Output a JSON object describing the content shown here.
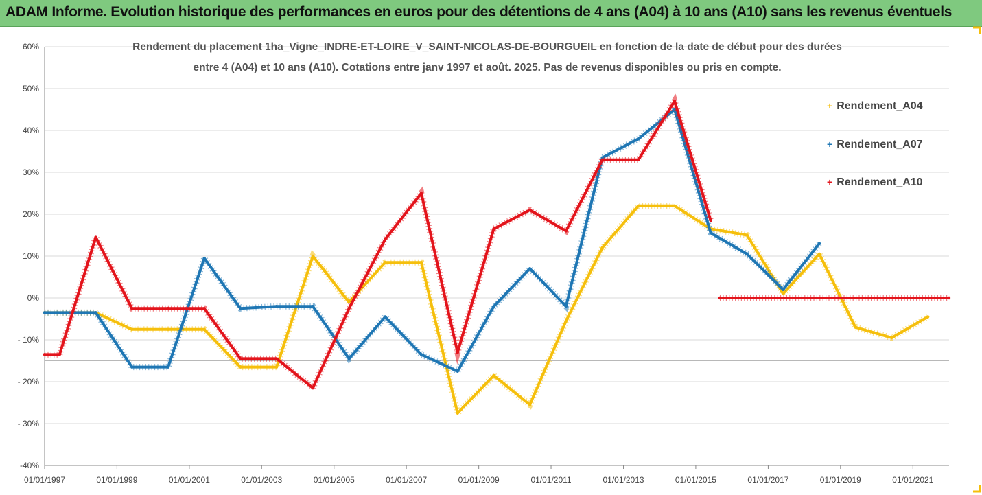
{
  "header": {
    "title": "ADAM Informe. Evolution historique des performances en euros pour des détentions de 4 ans (A04) à 10 ans (A10) sans les revenus éventuels"
  },
  "colors": {
    "header_bg": "#7fc97f",
    "A04": "#f5bf0c",
    "A07": "#1f77b4",
    "A10": "#e3141c",
    "grid": "#d9d9d9"
  },
  "chart_data": {
    "type": "line",
    "title_line1": "Rendement du placement 1ha_Vigne_INDRE-ET-LOIRE_V_SAINT-NICOLAS-DE-BOURGUEIL en fonction de la date de début pour des durées",
    "title_line2": "entre 4 (A04) et 10 ans (A10). Cotations entre janv 1997 et août. 2025. Pas de revenus disponibles ou pris en compte.",
    "xlabel": "",
    "ylabel": "",
    "xlim": [
      "1997-01-01",
      "2022-01-01"
    ],
    "ylim": [
      -40,
      60
    ],
    "y_ticks": [
      -40,
      -30,
      -20,
      -10,
      0,
      10,
      20,
      30,
      40,
      50,
      60
    ],
    "y_tick_labels": [
      "-40%",
      "- 30%",
      "- 20%",
      "- 10%",
      "0%",
      "10%",
      "20%",
      "30%",
      "40%",
      "50%",
      "60%"
    ],
    "x_ticks": [
      "1997-01-01",
      "1999-01-01",
      "2001-01-01",
      "2003-01-01",
      "2005-01-01",
      "2007-01-01",
      "2009-01-01",
      "2011-01-01",
      "2013-01-01",
      "2015-01-01",
      "2017-01-01",
      "2019-01-01",
      "2021-01-01"
    ],
    "x_tick_labels": [
      "01/01/1997",
      "01/01/1999",
      "01/01/2001",
      "01/01/2003",
      "01/01/2005",
      "01/01/2007",
      "01/01/2009",
      "01/01/2011",
      "01/01/2013",
      "01/01/2015",
      "01/01/2017",
      "01/01/2019",
      "01/01/2021"
    ],
    "grid": "horizontal",
    "legend_position": "right",
    "series": [
      {
        "name": "Rendement_A04",
        "color": "#f5bf0c",
        "points": [
          [
            "1997-01-01",
            -3.5
          ],
          [
            "1998-06-01",
            -3.5
          ],
          [
            "1999-06-01",
            -7.5
          ],
          [
            "2000-06-01",
            -7.5
          ],
          [
            "2001-06-01",
            -7.5
          ],
          [
            "2002-06-01",
            -16.5
          ],
          [
            "2003-06-01",
            -16.5
          ],
          [
            "2004-06-01",
            10.0
          ],
          [
            "2005-06-01",
            -1.0
          ],
          [
            "2006-06-01",
            8.5
          ],
          [
            "2007-06-01",
            8.5
          ],
          [
            "2008-06-01",
            -27.5
          ],
          [
            "2009-06-01",
            -18.5
          ],
          [
            "2010-06-01",
            -25.5
          ],
          [
            "2011-06-01",
            -5.5
          ],
          [
            "2012-06-01",
            12.0
          ],
          [
            "2013-06-01",
            22.0
          ],
          [
            "2014-06-01",
            22.0
          ],
          [
            "2015-06-01",
            16.5
          ],
          [
            "2016-06-01",
            15.0
          ],
          [
            "2017-06-01",
            1.0
          ],
          [
            "2018-06-01",
            10.5
          ],
          [
            "2019-06-01",
            -7.0
          ],
          [
            "2020-06-01",
            -9.5
          ],
          [
            "2021-06-01",
            -4.5
          ]
        ]
      },
      {
        "name": "Rendement_A07",
        "color": "#1f77b4",
        "points": [
          [
            "1997-01-01",
            -3.5
          ],
          [
            "1998-06-01",
            -3.5
          ],
          [
            "1999-06-01",
            -16.5
          ],
          [
            "2000-06-01",
            -16.5
          ],
          [
            "2001-06-01",
            9.5
          ],
          [
            "2002-06-01",
            -2.5
          ],
          [
            "2003-06-01",
            -2.0
          ],
          [
            "2004-06-01",
            -2.0
          ],
          [
            "2005-06-01",
            -14.5
          ],
          [
            "2006-06-01",
            -4.5
          ],
          [
            "2007-06-01",
            -13.5
          ],
          [
            "2008-06-01",
            -17.5
          ],
          [
            "2009-06-01",
            -2.0
          ],
          [
            "2010-06-01",
            7.0
          ],
          [
            "2011-06-01",
            -2.0
          ],
          [
            "2012-06-01",
            33.5
          ],
          [
            "2013-06-01",
            38.0
          ],
          [
            "2014-06-01",
            45.0
          ],
          [
            "2015-06-01",
            15.5
          ],
          [
            "2016-06-01",
            10.5
          ],
          [
            "2017-06-01",
            2.0
          ],
          [
            "2018-06-01",
            13.0
          ]
        ]
      },
      {
        "name": "Rendement_A10",
        "color": "#e3141c",
        "points": [
          [
            "1997-01-01",
            -13.5
          ],
          [
            "1997-06-01",
            -13.5
          ],
          [
            "1998-06-01",
            14.5
          ],
          [
            "1999-06-01",
            -2.5
          ],
          [
            "2000-06-01",
            -2.5
          ],
          [
            "2001-06-01",
            -2.5
          ],
          [
            "2002-06-01",
            -14.5
          ],
          [
            "2003-06-01",
            -14.5
          ],
          [
            "2004-06-01",
            -21.5
          ],
          [
            "2005-06-01",
            -2.5
          ],
          [
            "2006-06-01",
            14.0
          ],
          [
            "2007-06-01",
            25.0
          ],
          [
            "2008-06-01",
            -13.0
          ],
          [
            "2009-06-01",
            16.5
          ],
          [
            "2010-06-01",
            21.0
          ],
          [
            "2011-06-01",
            16.0
          ],
          [
            "2012-06-01",
            33.0
          ],
          [
            "2013-06-01",
            33.0
          ],
          [
            "2014-06-01",
            47.0
          ],
          [
            "2015-06-01",
            18.5
          ]
        ]
      },
      {
        "name": "Rendement_A10",
        "color": "#e3141c",
        "legend": false,
        "points": [
          [
            "2015-09-01",
            0.0
          ],
          [
            "2022-01-01",
            0.0
          ]
        ]
      }
    ]
  }
}
